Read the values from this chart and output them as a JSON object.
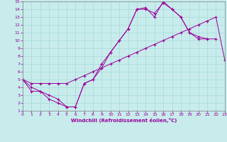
{
  "xlabel": "Windchill (Refroidissement éolien,°C)",
  "ylabel": "",
  "xlim": [
    0,
    23
  ],
  "ylim": [
    1,
    15
  ],
  "xticks": [
    0,
    1,
    2,
    3,
    4,
    5,
    6,
    7,
    8,
    9,
    10,
    11,
    12,
    13,
    14,
    15,
    16,
    17,
    18,
    19,
    20,
    21,
    22,
    23
  ],
  "yticks": [
    1,
    2,
    3,
    4,
    5,
    6,
    7,
    8,
    9,
    10,
    11,
    12,
    13,
    14,
    15
  ],
  "line_color": "#990099",
  "bg_color": "#c8ecec",
  "line1_x": [
    0,
    1,
    2,
    3,
    4,
    5,
    6,
    7,
    8,
    9,
    10,
    11,
    12,
    13,
    14,
    15,
    16,
    17,
    18,
    19,
    20,
    21
  ],
  "line1_y": [
    5,
    3.5,
    3.5,
    2.5,
    2.0,
    1.5,
    1.5,
    4.5,
    5.0,
    6.5,
    8.5,
    10.0,
    11.5,
    14.0,
    14.2,
    13.0,
    15.0,
    14.0,
    13.0,
    11.0,
    10.5,
    10.2
  ],
  "line2_x": [
    0,
    1,
    2,
    3,
    4,
    5,
    6,
    7,
    8,
    9,
    10,
    11,
    12,
    13,
    14,
    15,
    16,
    17,
    18,
    19,
    20,
    21,
    22
  ],
  "line2_y": [
    5,
    4.0,
    3.5,
    3.0,
    2.5,
    1.5,
    1.5,
    4.5,
    5.0,
    7.0,
    8.5,
    10.0,
    11.5,
    14.0,
    14.0,
    13.5,
    14.8,
    14.0,
    13.0,
    11.0,
    10.2,
    10.2,
    10.2
  ],
  "line3_x": [
    0,
    1,
    2,
    3,
    4,
    5,
    6,
    7,
    8,
    9,
    10,
    11,
    12,
    13,
    14,
    15,
    16,
    17,
    18,
    19,
    20,
    21,
    22,
    23
  ],
  "line3_y": [
    5.0,
    4.5,
    4.5,
    4.5,
    4.5,
    4.5,
    5.0,
    5.5,
    6.0,
    6.5,
    7.0,
    7.5,
    8.0,
    8.5,
    9.0,
    9.5,
    10.0,
    10.5,
    11.0,
    11.5,
    12.0,
    12.5,
    13.0,
    7.5
  ]
}
